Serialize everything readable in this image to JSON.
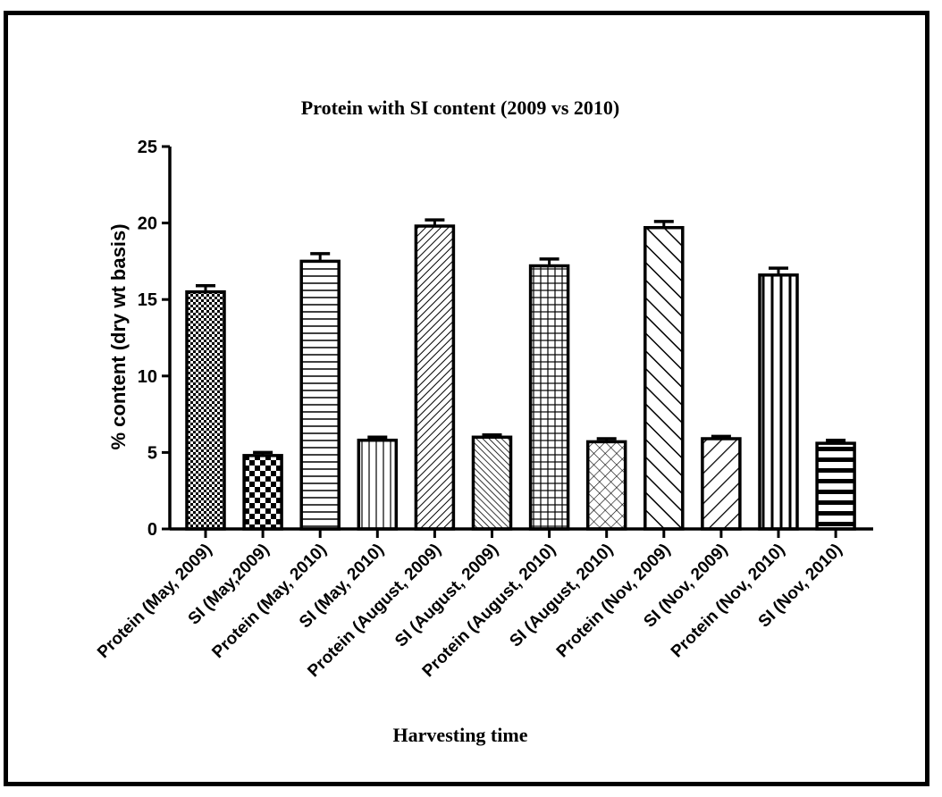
{
  "chart_data": {
    "type": "bar",
    "title": "Protein with SI content (2009 vs 2010)",
    "xlabel": "Harvesting time",
    "ylabel": "% content (dry wt basis)",
    "ylim": [
      0,
      25
    ],
    "yticks": [
      "0",
      "5",
      "10",
      "15",
      "20",
      "25"
    ],
    "grid": false,
    "categories": [
      "Protein (May, 2009)",
      "SI (May,2009)",
      "Protein (May, 2010)",
      "SI (May, 2010)",
      "Protein (August, 2009)",
      "SI (August, 2009)",
      "Protein (August, 2010)",
      "SI (August, 2010)",
      "Protein (Nov, 2009)",
      "SI (Nov, 2009)",
      "Protein (Nov, 2010)",
      "SI (Nov, 2010)"
    ],
    "values": [
      15.5,
      4.8,
      17.5,
      5.8,
      19.8,
      6.0,
      17.2,
      5.7,
      19.7,
      5.9,
      16.6,
      5.6
    ],
    "errors": [
      0.4,
      0.2,
      0.5,
      0.2,
      0.4,
      0.15,
      0.45,
      0.2,
      0.4,
      0.15,
      0.45,
      0.2
    ],
    "patterns": [
      "dots-dense",
      "checker",
      "horizontal-lines",
      "vertical-lines-thin",
      "diagonal-dense",
      "diagonal-fine",
      "grid",
      "crosshatch-diagonal",
      "diagonal-back",
      "diagonal-wide",
      "vertical-lines-thick",
      "horizontal-thick"
    ]
  }
}
